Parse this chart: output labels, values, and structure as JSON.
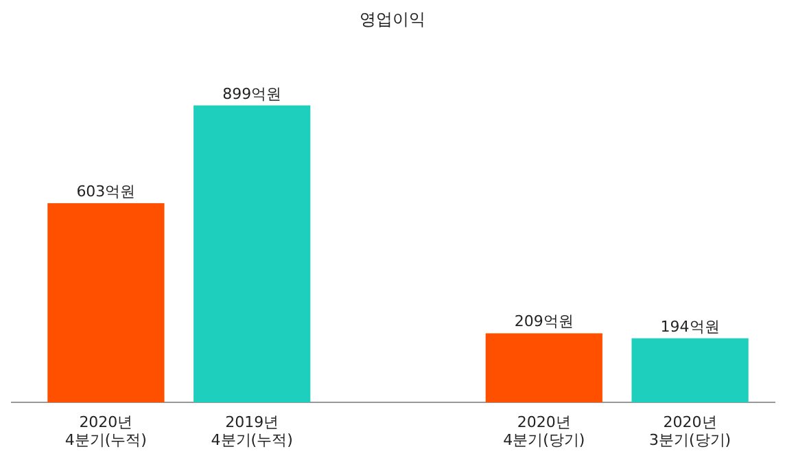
{
  "chart_data": {
    "type": "bar",
    "title": "영업이익",
    "categories": [
      "2020년\n4분기(누적)",
      "2019년\n4분기(누적)",
      null,
      "2020년\n4분기(당기)",
      "2020년\n3분기(당기)"
    ],
    "values": [
      603,
      899,
      null,
      209,
      194
    ],
    "value_labels": [
      "603억원",
      "899억원",
      null,
      "209억원",
      "194억원"
    ],
    "colors": [
      "#ff5000",
      "#1ecfbd",
      null,
      "#ff5000",
      "#1ecfbd"
    ]
  }
}
